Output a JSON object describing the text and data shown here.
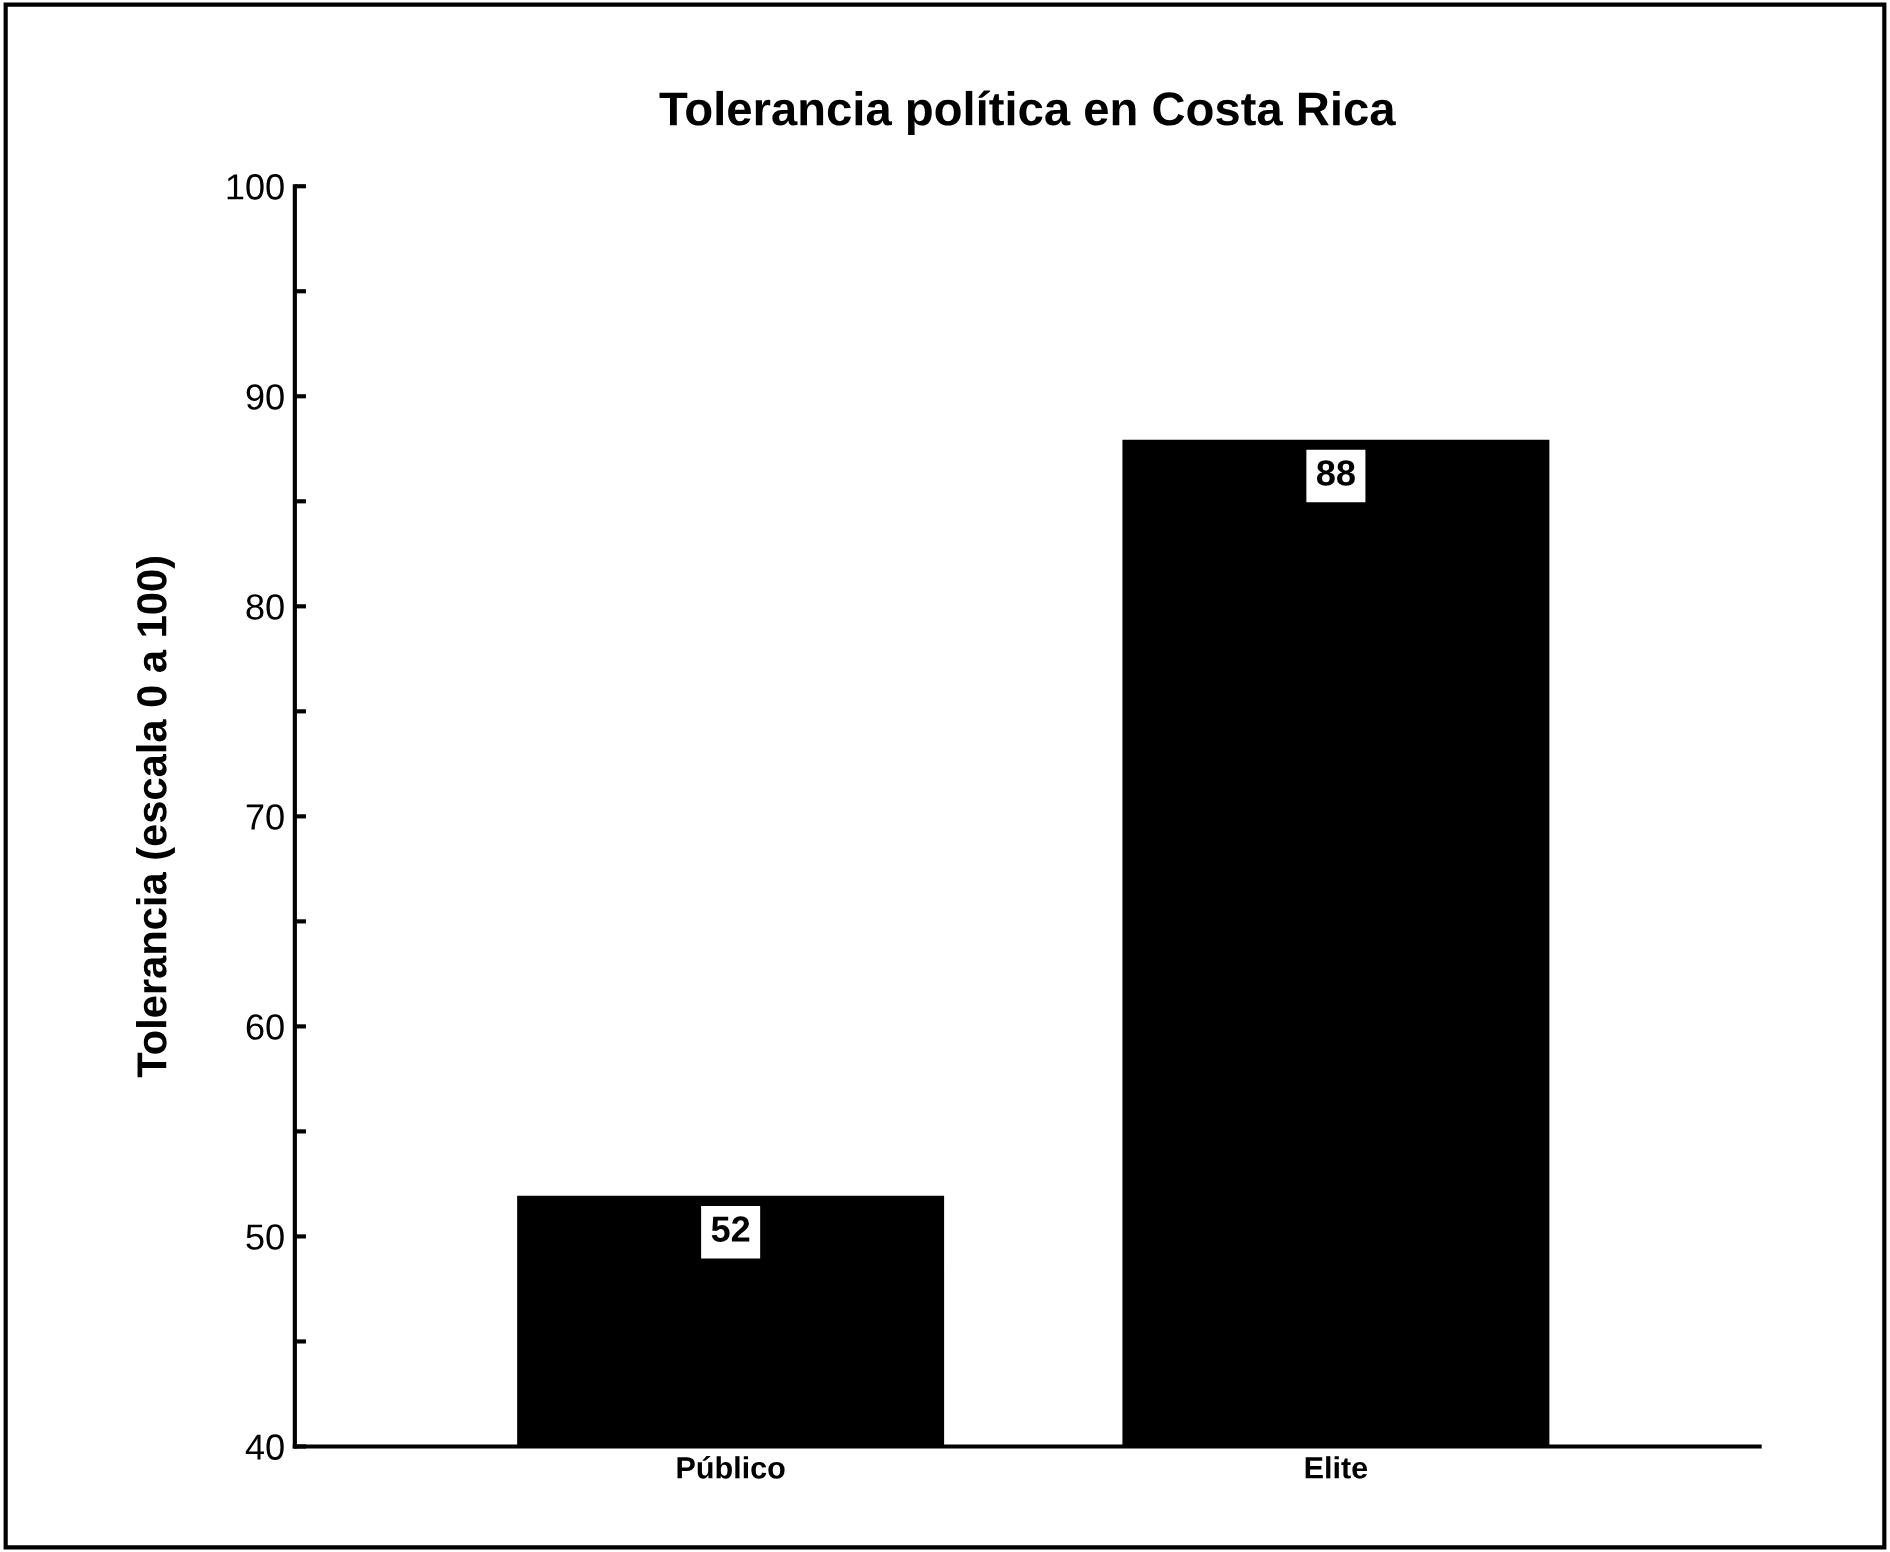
{
  "chart_data": {
    "type": "bar",
    "title": "Tolerancia política en Costa Rica",
    "ylabel": "Tolerancia (escala 0 a 100)",
    "categories": [
      "Público",
      "Elite"
    ],
    "values": [
      52,
      88
    ],
    "color": "#000000",
    "ylim": [
      40,
      100
    ],
    "yticks": [
      40,
      {
        "value": 45,
        "label": null
      },
      50,
      {
        "value": 55,
        "label": null
      },
      60,
      {
        "value": 65,
        "label": null
      },
      70,
      {
        "value": 75,
        "label": null
      },
      80,
      {
        "value": 85,
        "label": null
      },
      90,
      {
        "value": 95,
        "label": null
      },
      100
    ],
    "data_labels": true,
    "grid": false
  }
}
